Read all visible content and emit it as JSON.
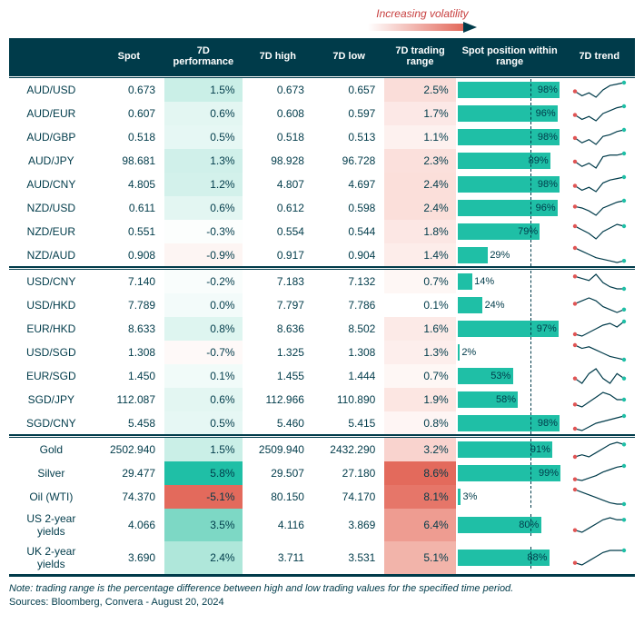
{
  "legend": {
    "label": "Increasing volatility"
  },
  "colors": {
    "header_bg": "#003b4a",
    "header_fg": "#ffffff",
    "bar_fill": "#1fbfa6",
    "text": "#003b4a",
    "spark_line": "#003b4a",
    "spark_start": "#e05555",
    "spark_end": "#1fbfa6"
  },
  "perf_scale": {
    "colors": [
      "#e36a5c",
      "#f2b2a8",
      "#f9ded9",
      "#ffffff",
      "#d5f2ec",
      "#a6e4d6",
      "#57cdb6",
      "#1fbfa6"
    ],
    "min": -5.1,
    "max": 5.8
  },
  "range_scale": {
    "colors": [
      "#ffffff",
      "#fce7e4",
      "#f8cfc9",
      "#f2b2a8",
      "#ec9387",
      "#e36a5c"
    ],
    "min": 0.1,
    "max": 8.6
  },
  "bar": {
    "dashed_at_pct": 70
  },
  "columns": [
    "",
    "Spot",
    "7D performance",
    "7D high",
    "7D low",
    "7D trading range",
    "Spot position within range",
    "7D trend"
  ],
  "groups": [
    {
      "rows": [
        {
          "pair": "AUD/USD",
          "spot": "0.673",
          "perf": 1.5,
          "high": "0.673",
          "low": "0.657",
          "range": 2.5,
          "pos": 98,
          "spark": [
            10,
            7,
            9,
            6,
            11,
            14,
            15,
            16
          ]
        },
        {
          "pair": "AUD/EUR",
          "spot": "0.607",
          "perf": 0.6,
          "high": "0.608",
          "low": "0.597",
          "range": 1.7,
          "pos": 96,
          "spark": [
            9,
            6,
            8,
            5,
            10,
            12,
            14,
            15
          ]
        },
        {
          "pair": "AUD/GBP",
          "spot": "0.518",
          "perf": 0.5,
          "high": "0.518",
          "low": "0.513",
          "range": 1.1,
          "pos": 98,
          "spark": [
            10,
            7,
            9,
            6,
            11,
            12,
            14,
            15
          ]
        },
        {
          "pair": "AUD/JPY",
          "spot": "98.681",
          "perf": 1.3,
          "high": "98.928",
          "low": "96.728",
          "range": 2.3,
          "pos": 89,
          "spark": [
            9,
            6,
            8,
            5,
            12,
            13,
            13,
            14
          ]
        },
        {
          "pair": "AUD/CNY",
          "spot": "4.805",
          "perf": 1.2,
          "high": "4.807",
          "low": "4.697",
          "range": 2.4,
          "pos": 98,
          "spark": [
            9,
            6,
            8,
            5,
            11,
            13,
            14,
            15
          ]
        },
        {
          "pair": "NZD/USD",
          "spot": "0.611",
          "perf": 0.6,
          "high": "0.612",
          "low": "0.598",
          "range": 2.4,
          "pos": 96,
          "spark": [
            11,
            10,
            8,
            5,
            10,
            12,
            14,
            15
          ]
        },
        {
          "pair": "NZD/EUR",
          "spot": "0.551",
          "perf": -0.3,
          "high": "0.554",
          "low": "0.544",
          "range": 1.8,
          "pos": 79,
          "spark": [
            12,
            10,
            8,
            5,
            9,
            11,
            13,
            12
          ]
        },
        {
          "pair": "NZD/AUD",
          "spot": "0.908",
          "perf": -0.9,
          "high": "0.917",
          "low": "0.904",
          "range": 1.4,
          "pos": 29,
          "spark": [
            15,
            13,
            11,
            9,
            8,
            7,
            6,
            7
          ]
        }
      ]
    },
    {
      "rows": [
        {
          "pair": "USD/CNY",
          "spot": "7.140",
          "perf": -0.2,
          "high": "7.183",
          "low": "7.132",
          "range": 0.7,
          "pos": 14,
          "spark": [
            13,
            12,
            11,
            14,
            10,
            8,
            7,
            7
          ]
        },
        {
          "pair": "USD/HKD",
          "spot": "7.789",
          "perf": 0.0,
          "high": "7.797",
          "low": "7.786",
          "range": 0.1,
          "pos": 24,
          "spark": [
            10,
            11,
            12,
            11,
            9,
            8,
            7,
            8
          ]
        },
        {
          "pair": "EUR/HKD",
          "spot": "8.633",
          "perf": 0.8,
          "high": "8.636",
          "low": "8.502",
          "range": 1.6,
          "pos": 97,
          "spark": [
            8,
            7,
            9,
            11,
            13,
            14,
            12,
            15
          ]
        },
        {
          "pair": "USD/SGD",
          "spot": "1.308",
          "perf": -0.7,
          "high": "1.325",
          "low": "1.308",
          "range": 1.3,
          "pos": 2,
          "spark": [
            14,
            12,
            13,
            11,
            9,
            7,
            6,
            5
          ]
        },
        {
          "pair": "EUR/SGD",
          "spot": "1.450",
          "perf": 0.1,
          "high": "1.455",
          "low": "1.444",
          "range": 0.7,
          "pos": 53,
          "spark": [
            10,
            9,
            11,
            12,
            10,
            9,
            11,
            10
          ]
        },
        {
          "pair": "SGD/JPY",
          "spot": "112.087",
          "perf": 0.6,
          "high": "112.966",
          "low": "110.890",
          "range": 1.9,
          "pos": 58,
          "spark": [
            9,
            8,
            10,
            12,
            14,
            13,
            11,
            11
          ]
        },
        {
          "pair": "SGD/CNY",
          "spot": "5.458",
          "perf": 0.5,
          "high": "5.460",
          "low": "5.415",
          "range": 0.8,
          "pos": 98,
          "spark": [
            8,
            7,
            9,
            11,
            12,
            13,
            14,
            15
          ]
        }
      ]
    },
    {
      "rows": [
        {
          "pair": "Gold",
          "spot": "2502.940",
          "perf": 1.5,
          "high": "2509.940",
          "low": "2432.290",
          "range": 3.2,
          "pos": 91,
          "spark": [
            8,
            9,
            8,
            10,
            12,
            14,
            15,
            14
          ]
        },
        {
          "pair": "Silver",
          "spot": "29.477",
          "perf": 5.8,
          "high": "29.507",
          "low": "27.180",
          "range": 8.6,
          "pos": 99,
          "spark": [
            6,
            5,
            7,
            9,
            12,
            14,
            16,
            17
          ]
        },
        {
          "pair": "Oil (WTI)",
          "spot": "74.370",
          "perf": -5.1,
          "high": "80.150",
          "low": "74.170",
          "range": 8.1,
          "pos": 3,
          "spark": [
            16,
            14,
            12,
            10,
            8,
            6,
            5,
            5
          ]
        },
        {
          "pair": "US 2-year yields",
          "spot": "4.066",
          "perf": 3.5,
          "high": "4.116",
          "low": "3.869",
          "range": 6.4,
          "pos": 80,
          "spark": [
            8,
            7,
            9,
            11,
            13,
            14,
            13,
            13
          ]
        },
        {
          "pair": "UK 2-year yields",
          "spot": "3.690",
          "perf": 2.4,
          "high": "3.711",
          "low": "3.531",
          "range": 5.1,
          "pos": 88,
          "spark": [
            8,
            7,
            9,
            11,
            13,
            14,
            14,
            14
          ]
        }
      ]
    }
  ],
  "footer": {
    "note": "Note: trading range is the percentage difference between high and low trading values for the specified time period.",
    "sources": "Sources: Bloomberg, Convera - August 20, 2024"
  }
}
